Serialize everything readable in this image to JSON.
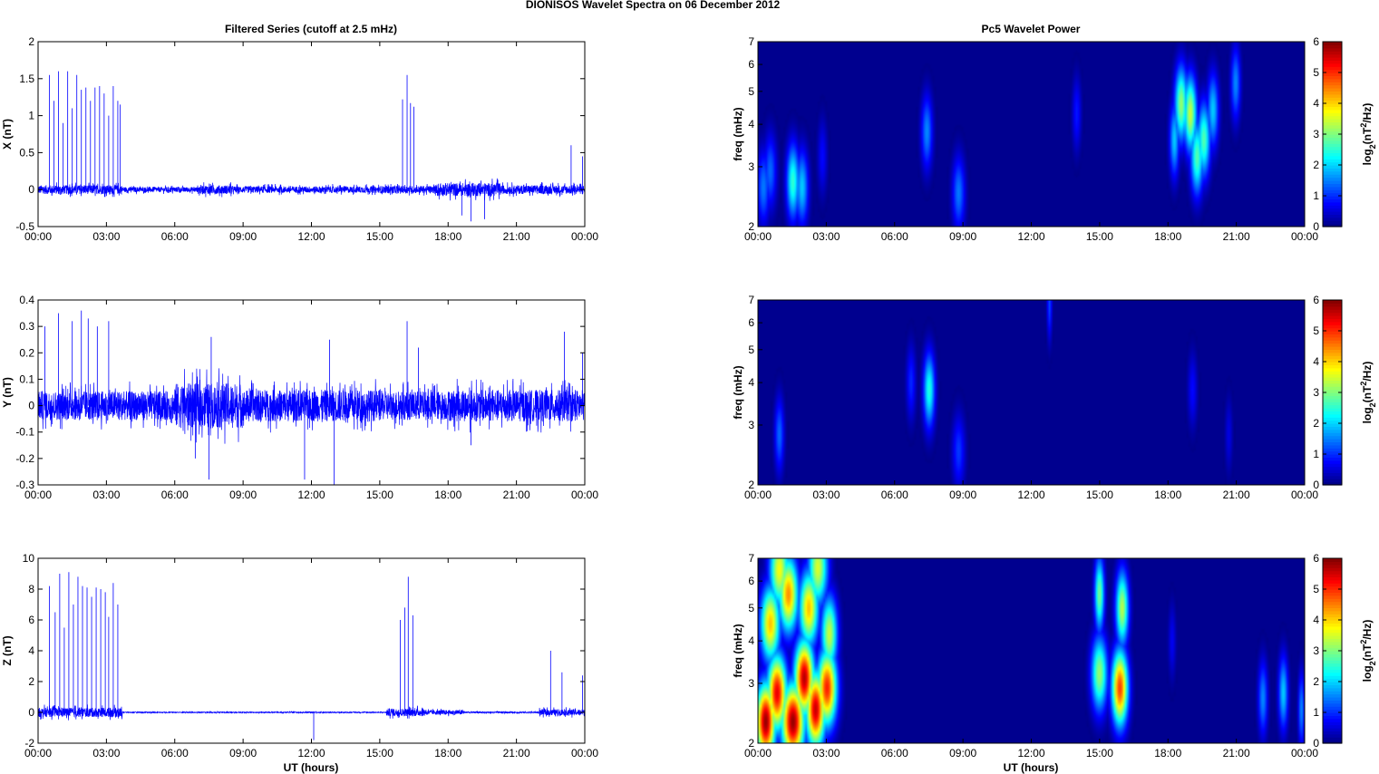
{
  "figure": {
    "title": "DIONISOS Wavelet Spectra on 06 December  2012",
    "left_title": "Filtered Series (cutoff at 2.5 mHz)",
    "right_title": "Pc5 Wavelet Power",
    "xlabel": "UT (hours)"
  },
  "chart_data": [
    {
      "type": "line",
      "panel": "X",
      "ylabel": "X (nT)",
      "xlim": [
        0,
        24
      ],
      "ylim": [
        -0.5,
        2
      ],
      "x_ticks": [
        "00:00",
        "03:00",
        "06:00",
        "09:00",
        "12:00",
        "15:00",
        "18:00",
        "21:00",
        "00:00"
      ],
      "y_ticks": [
        "-0.5",
        "0",
        "0.5",
        "1",
        "1.5",
        "2"
      ],
      "noise": [
        [
          0,
          3.7,
          0.06
        ],
        [
          3.7,
          7,
          0.035
        ],
        [
          7,
          8.5,
          0.06
        ],
        [
          8.5,
          15,
          0.045
        ],
        [
          15,
          17.5,
          0.05
        ],
        [
          17.5,
          20.3,
          0.09
        ],
        [
          20.3,
          24,
          0.06
        ]
      ],
      "spikes": [
        [
          0.5,
          1.55
        ],
        [
          0.7,
          1.2
        ],
        [
          0.9,
          1.6
        ],
        [
          1.1,
          0.9
        ],
        [
          1.3,
          1.6
        ],
        [
          1.5,
          1.1
        ],
        [
          1.7,
          1.55
        ],
        [
          1.9,
          1.35
        ],
        [
          2.1,
          1.38
        ],
        [
          2.3,
          1.2
        ],
        [
          2.5,
          1.38
        ],
        [
          2.7,
          1.4
        ],
        [
          2.9,
          1.3
        ],
        [
          3.1,
          1.0
        ],
        [
          3.3,
          1.4
        ],
        [
          3.5,
          1.2
        ],
        [
          3.6,
          1.15
        ],
        [
          16.0,
          1.22
        ],
        [
          16.2,
          1.55
        ],
        [
          16.35,
          1.17
        ],
        [
          16.5,
          1.12
        ],
        [
          23.4,
          0.6
        ],
        [
          23.9,
          0.45
        ]
      ],
      "dips": [
        [
          19.0,
          -0.43
        ],
        [
          19.6,
          -0.4
        ],
        [
          18.6,
          -0.35
        ]
      ],
      "color": "#0000ff"
    },
    {
      "type": "line",
      "panel": "Y",
      "ylabel": "Y (nT)",
      "xlim": [
        0,
        24
      ],
      "ylim": [
        -0.3,
        0.4
      ],
      "x_ticks": [
        "00:00",
        "03:00",
        "06:00",
        "09:00",
        "12:00",
        "15:00",
        "18:00",
        "21:00",
        "00:00"
      ],
      "y_ticks": [
        "-0.3",
        "-0.2",
        "-0.1",
        "0",
        "0.1",
        "0.2",
        "0.3",
        "0.4"
      ],
      "noise": [
        [
          0,
          6,
          0.055
        ],
        [
          6,
          9,
          0.085
        ],
        [
          9,
          15,
          0.06
        ],
        [
          15,
          18,
          0.055
        ],
        [
          18,
          24,
          0.06
        ]
      ],
      "spikes": [
        [
          0.3,
          0.3
        ],
        [
          0.9,
          0.35
        ],
        [
          1.5,
          0.32
        ],
        [
          1.9,
          0.36
        ],
        [
          2.2,
          0.33
        ],
        [
          2.6,
          0.3
        ],
        [
          3.1,
          0.32
        ],
        [
          7.6,
          0.26
        ],
        [
          12.8,
          0.25
        ],
        [
          16.2,
          0.32
        ],
        [
          16.7,
          0.22
        ],
        [
          23.1,
          0.28
        ],
        [
          23.9,
          0.2
        ]
      ],
      "dips": [
        [
          7.5,
          -0.28
        ],
        [
          11.7,
          -0.28
        ],
        [
          13.0,
          -0.3
        ],
        [
          6.9,
          -0.2
        ],
        [
          19.0,
          -0.15
        ]
      ],
      "color": "#0000ff"
    },
    {
      "type": "line",
      "panel": "Z",
      "ylabel": "Z (nT)",
      "xlim": [
        0,
        24
      ],
      "ylim": [
        -2,
        10
      ],
      "x_ticks": [
        "00:00",
        "03:00",
        "06:00",
        "09:00",
        "12:00",
        "15:00",
        "18:00",
        "21:00",
        "00:00"
      ],
      "y_ticks": [
        "-2",
        "0",
        "2",
        "4",
        "6",
        "8",
        "10"
      ],
      "noise": [
        [
          0,
          3.7,
          0.3
        ],
        [
          3.7,
          15.3,
          0.03
        ],
        [
          15.3,
          17,
          0.25
        ],
        [
          17,
          18.7,
          0.15
        ],
        [
          18.7,
          22,
          0.05
        ],
        [
          22,
          24,
          0.2
        ]
      ],
      "spikes": [
        [
          0.5,
          8.2
        ],
        [
          0.75,
          6.5
        ],
        [
          0.95,
          9.0
        ],
        [
          1.15,
          5.5
        ],
        [
          1.35,
          9.1
        ],
        [
          1.55,
          7.0
        ],
        [
          1.75,
          8.8
        ],
        [
          1.95,
          8.2
        ],
        [
          2.15,
          8.1
        ],
        [
          2.35,
          7.5
        ],
        [
          2.55,
          8.1
        ],
        [
          2.75,
          8.0
        ],
        [
          2.95,
          7.8
        ],
        [
          3.1,
          6.2
        ],
        [
          3.3,
          8.4
        ],
        [
          3.5,
          7.0
        ],
        [
          15.9,
          6.0
        ],
        [
          16.1,
          6.8
        ],
        [
          16.25,
          8.8
        ],
        [
          16.45,
          6.3
        ],
        [
          22.5,
          4.0
        ],
        [
          23.9,
          2.4
        ],
        [
          23.0,
          2.6
        ]
      ],
      "dips": [
        [
          12.1,
          -1.8
        ]
      ],
      "color": "#0000ff"
    },
    {
      "type": "heatmap",
      "panel": "X",
      "ylabel": "freq (mHz)",
      "xlim": [
        0,
        24
      ],
      "ylim": [
        2,
        7
      ],
      "yscale": "log",
      "colorbar_label": "log2(nT2/Hz)",
      "clim": [
        0,
        6
      ],
      "colorbar_ticks": [
        "0",
        "1",
        "2",
        "3",
        "4",
        "5",
        "6"
      ],
      "x_ticks": [
        "00:00",
        "03:00",
        "06:00",
        "09:00",
        "12:00",
        "15:00",
        "18:00",
        "21:00",
        "00:00"
      ],
      "y_ticks": [
        "2",
        "3",
        "4",
        "5",
        "6",
        "7"
      ],
      "blobs": [
        [
          0.2,
          2.6,
          0.2,
          1.5
        ],
        [
          0.5,
          2.9,
          0.2,
          1.4
        ],
        [
          1.5,
          2.7,
          0.2,
          2.6
        ],
        [
          1.9,
          2.6,
          0.2,
          2.0
        ],
        [
          2.8,
          3.2,
          0.15,
          0.8
        ],
        [
          7.4,
          3.8,
          0.18,
          1.6
        ],
        [
          8.8,
          2.5,
          0.2,
          1.5
        ],
        [
          14.0,
          4.3,
          0.14,
          0.9
        ],
        [
          18.3,
          3.6,
          0.15,
          2.0
        ],
        [
          18.6,
          4.6,
          0.2,
          3.2
        ],
        [
          19.0,
          4.3,
          0.2,
          3.5
        ],
        [
          19.3,
          3.2,
          0.2,
          2.8
        ],
        [
          19.6,
          3.6,
          0.2,
          2.8
        ],
        [
          20.0,
          4.4,
          0.18,
          2.0
        ],
        [
          21.0,
          5.3,
          0.15,
          1.6
        ]
      ],
      "colorscale": "jet"
    },
    {
      "type": "heatmap",
      "panel": "Y",
      "ylabel": "freq (mHz)",
      "xlim": [
        0,
        24
      ],
      "ylim": [
        2,
        7
      ],
      "yscale": "log",
      "colorbar_label": "log2(nT2/Hz)",
      "clim": [
        0,
        6
      ],
      "colorbar_ticks": [
        "0",
        "1",
        "2",
        "3",
        "4",
        "5",
        "6"
      ],
      "x_ticks": [
        "00:00",
        "03:00",
        "06:00",
        "09:00",
        "12:00",
        "15:00",
        "18:00",
        "21:00",
        "00:00"
      ],
      "y_ticks": [
        "2",
        "3",
        "4",
        "5",
        "6",
        "7"
      ],
      "blobs": [
        [
          0.9,
          2.8,
          0.15,
          1.4
        ],
        [
          6.7,
          4.0,
          0.15,
          1.0
        ],
        [
          7.5,
          3.8,
          0.18,
          2.5
        ],
        [
          8.8,
          2.5,
          0.2,
          1.1
        ],
        [
          12.8,
          6.9,
          0.08,
          1.2
        ],
        [
          19.1,
          3.8,
          0.15,
          0.8
        ],
        [
          20.7,
          2.8,
          0.12,
          0.6
        ]
      ],
      "colorscale": "jet"
    },
    {
      "type": "heatmap",
      "panel": "Z",
      "ylabel": "freq (mHz)",
      "xlim": [
        0,
        24
      ],
      "ylim": [
        2,
        7
      ],
      "yscale": "log",
      "colorbar_label": "log2(nT2/Hz)",
      "clim": [
        0,
        6
      ],
      "colorbar_ticks": [
        "0",
        "1",
        "2",
        "3",
        "4",
        "5",
        "6"
      ],
      "x_ticks": [
        "00:00",
        "03:00",
        "06:00",
        "09:00",
        "12:00",
        "15:00",
        "18:00",
        "21:00",
        "00:00"
      ],
      "y_ticks": [
        "2",
        "3",
        "4",
        "5",
        "6",
        "7"
      ],
      "blobs": [
        [
          0.3,
          2.3,
          0.3,
          6.0
        ],
        [
          0.8,
          2.8,
          0.3,
          5.5
        ],
        [
          1.5,
          2.3,
          0.35,
          6.0
        ],
        [
          2.0,
          3.1,
          0.3,
          5.8
        ],
        [
          2.5,
          2.5,
          0.3,
          5.7
        ],
        [
          3.0,
          2.9,
          0.3,
          5.2
        ],
        [
          0.5,
          4.5,
          0.3,
          4.2
        ],
        [
          1.3,
          5.5,
          0.3,
          4.5
        ],
        [
          2.2,
          5.0,
          0.3,
          4.2
        ],
        [
          3.1,
          4.2,
          0.25,
          3.5
        ],
        [
          0.9,
          6.5,
          0.3,
          3.8
        ],
        [
          2.6,
          6.6,
          0.3,
          3.6
        ],
        [
          15.0,
          3.2,
          0.25,
          3.2
        ],
        [
          15.0,
          5.5,
          0.15,
          3.0
        ],
        [
          15.9,
          2.9,
          0.25,
          5.0
        ],
        [
          16.0,
          5.0,
          0.2,
          3.4
        ],
        [
          22.2,
          2.7,
          0.15,
          1.6
        ],
        [
          23.1,
          2.8,
          0.15,
          2.0
        ],
        [
          18.2,
          4.0,
          0.12,
          0.7
        ],
        [
          23.9,
          2.5,
          0.1,
          1.6
        ]
      ],
      "colorscale": "jet"
    }
  ]
}
